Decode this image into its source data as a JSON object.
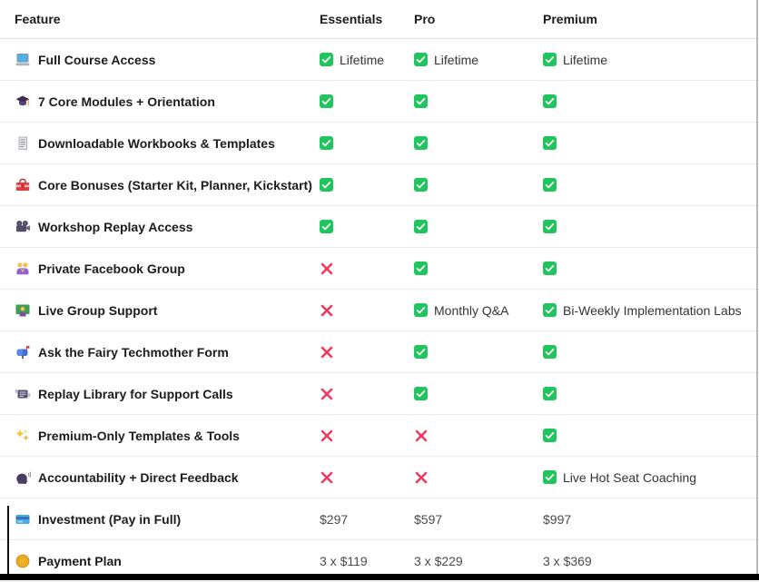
{
  "table": {
    "columns": [
      "Feature",
      "Essentials",
      "Pro",
      "Premium"
    ],
    "rows": [
      {
        "icon": "laptop-icon",
        "feature": "Full Course Access",
        "cells": [
          {
            "mark": "check",
            "text": "Lifetime"
          },
          {
            "mark": "check",
            "text": "Lifetime"
          },
          {
            "mark": "check",
            "text": "Lifetime"
          }
        ]
      },
      {
        "icon": "graduation-cap-icon",
        "feature": "7 Core Modules + Orientation",
        "cells": [
          {
            "mark": "check"
          },
          {
            "mark": "check"
          },
          {
            "mark": "check"
          }
        ]
      },
      {
        "icon": "receipt-icon",
        "feature": "Downloadable Workbooks & Templates",
        "cells": [
          {
            "mark": "check"
          },
          {
            "mark": "check"
          },
          {
            "mark": "check"
          }
        ]
      },
      {
        "icon": "toolbox-icon",
        "feature": "Core Bonuses (Starter Kit, Planner, Kickstart)",
        "cells": [
          {
            "mark": "check"
          },
          {
            "mark": "check"
          },
          {
            "mark": "check"
          }
        ]
      },
      {
        "icon": "movie-camera-icon",
        "feature": "Workshop Replay Access",
        "cells": [
          {
            "mark": "check"
          },
          {
            "mark": "check"
          },
          {
            "mark": "check"
          }
        ]
      },
      {
        "icon": "family-icon",
        "feature": "Private Facebook Group",
        "cells": [
          {
            "mark": "cross"
          },
          {
            "mark": "check"
          },
          {
            "mark": "check"
          }
        ]
      },
      {
        "icon": "teacher-icon",
        "feature": "Live Group Support",
        "cells": [
          {
            "mark": "cross"
          },
          {
            "mark": "check",
            "text": "Monthly Q&A"
          },
          {
            "mark": "check",
            "text": "Bi-Weekly Implementation Labs"
          }
        ]
      },
      {
        "icon": "mailbox-icon",
        "feature": "Ask the Fairy Techmother Form",
        "cells": [
          {
            "mark": "cross"
          },
          {
            "mark": "check"
          },
          {
            "mark": "check"
          }
        ]
      },
      {
        "icon": "replay-library-icon",
        "feature": "Replay Library for Support Calls",
        "cells": [
          {
            "mark": "cross"
          },
          {
            "mark": "check"
          },
          {
            "mark": "check"
          }
        ]
      },
      {
        "icon": "sparkles-icon",
        "feature": "Premium-Only Templates & Tools",
        "cells": [
          {
            "mark": "cross"
          },
          {
            "mark": "cross"
          },
          {
            "mark": "check"
          }
        ]
      },
      {
        "icon": "speaking-head-icon",
        "feature": "Accountability + Direct Feedback",
        "cells": [
          {
            "mark": "cross"
          },
          {
            "mark": "cross"
          },
          {
            "mark": "check",
            "text": "Live Hot Seat Coaching"
          }
        ]
      },
      {
        "icon": "credit-card-icon",
        "feature": "Investment (Pay in Full)",
        "cells": [
          {
            "text": "$297",
            "price": true
          },
          {
            "text": "$597",
            "price": true
          },
          {
            "text": "$997",
            "price": true
          }
        ]
      },
      {
        "icon": "coin-icon",
        "feature": "Payment Plan",
        "cells": [
          {
            "text": "3 x $119",
            "price": true
          },
          {
            "text": "3 x $229",
            "price": true
          },
          {
            "text": "3 x $369",
            "price": true
          }
        ]
      }
    ]
  },
  "colors": {
    "check_green": "#21c55d",
    "cross_pink": "#f23a5f",
    "row_divider": "#ececec",
    "feature_text": "#1c1c1c",
    "value_text": "#343434"
  }
}
